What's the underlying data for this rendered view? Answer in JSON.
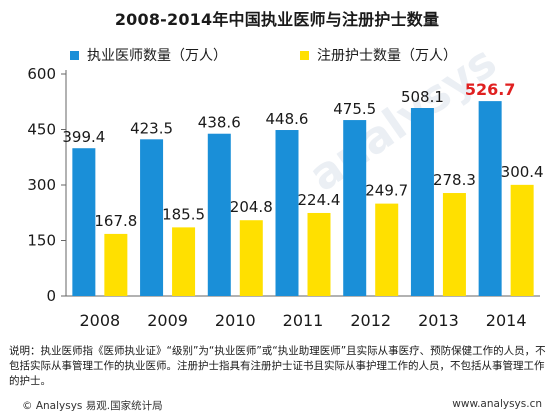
{
  "chart_data": {
    "type": "bar",
    "title": "2008-2014年中国执业医师与注册护士数量",
    "categories": [
      "2008",
      "2009",
      "2010",
      "2011",
      "2012",
      "2013",
      "2014"
    ],
    "series": [
      {
        "name": "执业医师数量（万人）",
        "color": "#1a8fd8",
        "values": [
          399.4,
          423.5,
          438.6,
          448.6,
          475.5,
          508.1,
          526.7
        ]
      },
      {
        "name": "注册护士数量（万人）",
        "color": "#ffe000",
        "values": [
          167.8,
          185.5,
          204.8,
          224.4,
          249.7,
          278.3,
          300.4
        ]
      }
    ],
    "data_labels": [
      [
        "399.4",
        "423.5",
        "438.6",
        "448.6",
        "475.5",
        "508.1",
        "526.7"
      ],
      [
        "167.8",
        "185.5",
        "204.8",
        "224.4",
        "249.7",
        "278.3",
        "300.4"
      ]
    ],
    "highlight": {
      "series": 0,
      "index": 6,
      "color": "#e02020"
    },
    "ylim": [
      0,
      600
    ],
    "yticks": [
      0,
      150,
      300,
      450,
      600
    ],
    "ytick_labels": [
      "0",
      "150",
      "300",
      "450",
      "600"
    ],
    "grid": false,
    "legend_position": "top"
  },
  "note": "说明：执业医师指《医师执业证》“级别”为“执业医师”或“执业助理医师”且实际从事医疗、预防保健工作的人员，不包括实际从事管理工作的执业医师。注册护士指具有注册护士证书且实际从事护理工作的人员，不包括从事管理工作的护士。",
  "footer": {
    "source": "© Analysys 易观.国家统计局",
    "url": "www.analysys.cn"
  },
  "watermark": "analysys"
}
